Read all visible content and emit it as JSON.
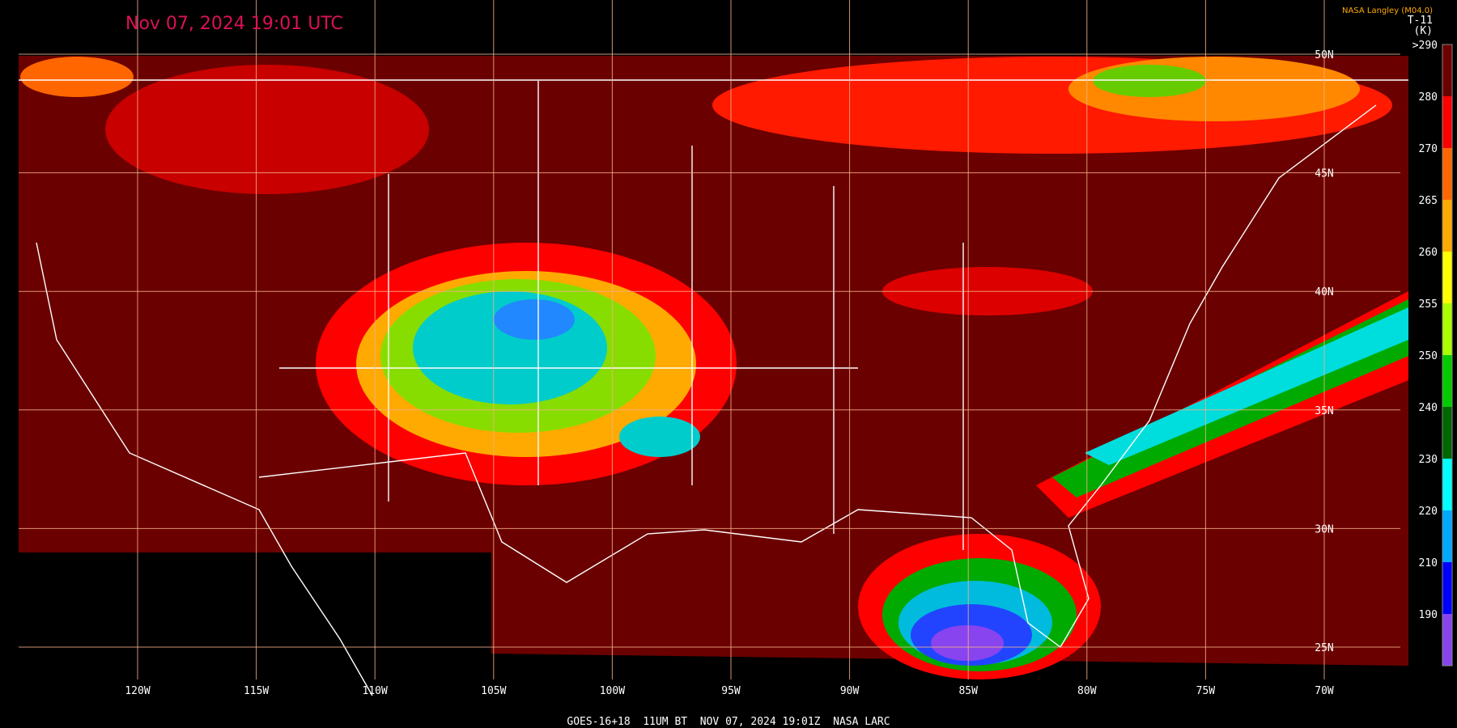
{
  "header": {
    "title": "Nov 07, 2024 19:01 UTC",
    "source": "NASA Langley (M04.0)",
    "product": "T-11",
    "unit": "(K)"
  },
  "colorbar": {
    "labels": [
      ">290",
      "280",
      "270",
      "265",
      "260",
      "255",
      "250",
      "240",
      "230",
      "220",
      "210",
      "190"
    ]
  },
  "longitudes": [
    "120W",
    "115W",
    "110W",
    "105W",
    "100W",
    "95W",
    "90W",
    "85W",
    "80W",
    "75W",
    "70W"
  ],
  "latitudes": [
    "50N",
    "45N",
    "40N",
    "35N",
    "30N",
    "25N"
  ],
  "footer": "GOES-16+18  11UM BT  NOV 07, 2024 19:01Z  NASA LARC"
}
